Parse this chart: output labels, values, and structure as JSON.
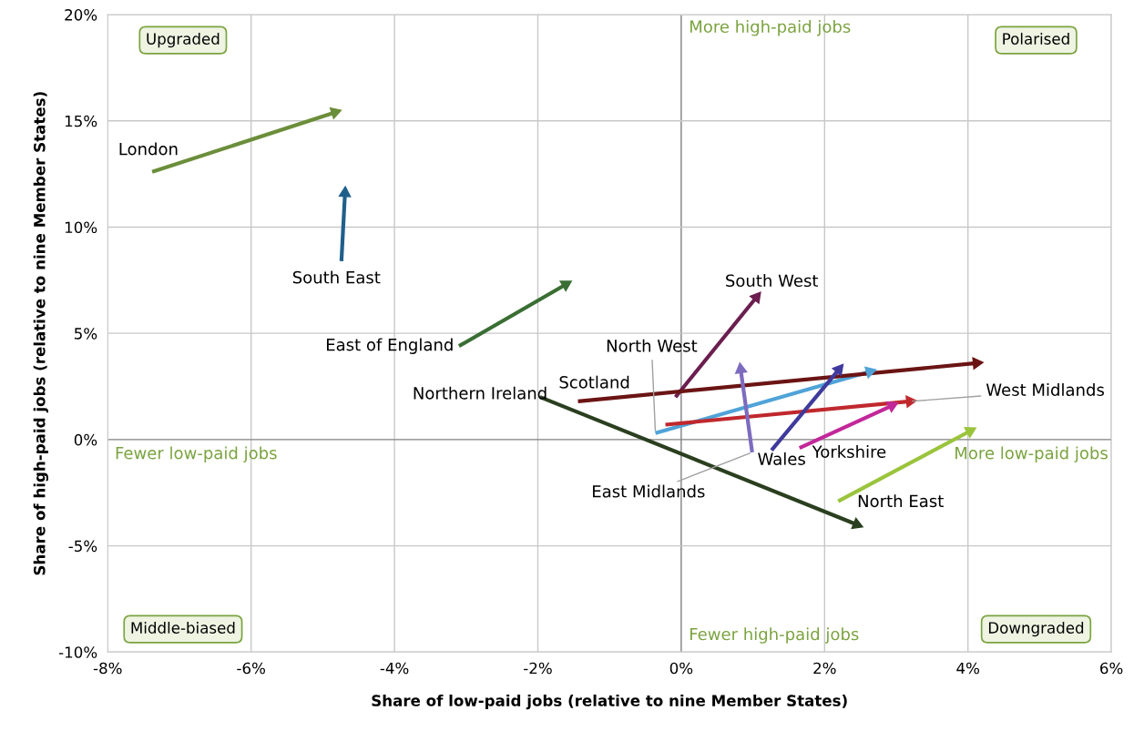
{
  "chart_data": {
    "type": "line",
    "xlabel": "Share of low-paid jobs (relative to nine Member States)",
    "ylabel": "Share of high-paid jobs (relative to nine Member States)",
    "xlim": [
      -8,
      6
    ],
    "ylim": [
      -10,
      20
    ],
    "xticks": [
      {
        "value": -8,
        "label": "-8%"
      },
      {
        "value": -6,
        "label": "-6%"
      },
      {
        "value": -4,
        "label": "-4%"
      },
      {
        "value": -2,
        "label": "-2%"
      },
      {
        "value": 0,
        "label": "0%"
      },
      {
        "value": 2,
        "label": "2%"
      },
      {
        "value": 4,
        "label": "4%"
      },
      {
        "value": 6,
        "label": "6%"
      }
    ],
    "yticks": [
      {
        "value": -10,
        "label": "-10%"
      },
      {
        "value": -5,
        "label": "-5%"
      },
      {
        "value": 0,
        "label": "0%"
      },
      {
        "value": 5,
        "label": "5%"
      },
      {
        "value": 10,
        "label": "10%"
      },
      {
        "value": 15,
        "label": "15%"
      },
      {
        "value": 20,
        "label": "20%"
      }
    ],
    "grid": true,
    "marker": "triangle",
    "line_style": "solid",
    "annotations": [
      "Upgraded",
      "Polarised",
      "Middle-biased",
      "Downgraded",
      "More high-paid jobs",
      "Fewer high-paid jobs",
      "Fewer low-paid jobs",
      "More low-paid jobs"
    ],
    "series": [
      {
        "name": "London",
        "color": "#6b8e3a",
        "x": [
          -7.38,
          -4.83
        ],
        "values": [
          12.6,
          15.4
        ]
      },
      {
        "name": "South East",
        "color": "#1f5f8b",
        "x": [
          -4.74,
          -4.69
        ],
        "values": [
          8.4,
          11.6
        ]
      },
      {
        "name": "East of England",
        "color": "#3a6e34",
        "x": [
          -3.1,
          -1.61
        ],
        "values": [
          4.4,
          7.3
        ]
      },
      {
        "name": "South West",
        "color": "#6b1e4f",
        "x": [
          -0.08,
          1.05
        ],
        "values": [
          2.0,
          6.7
        ]
      },
      {
        "name": "North West",
        "color": "#4fa3d8",
        "x": [
          -0.36,
          2.63
        ],
        "values": [
          0.3,
          3.2
        ]
      },
      {
        "name": "Scotland",
        "color": "#6b1414",
        "x": [
          -1.44,
          4.12
        ],
        "values": [
          1.8,
          3.6
        ]
      },
      {
        "name": "West Midlands",
        "color": "#c0282d",
        "x": [
          -0.22,
          3.19
        ],
        "values": [
          0.7,
          1.8
        ]
      },
      {
        "name": "Wales",
        "color": "#3f3a9c",
        "x": [
          1.26,
          2.2
        ],
        "values": [
          -0.5,
          3.3
        ]
      },
      {
        "name": "East Midlands",
        "color": "#7d6bbf",
        "x": [
          0.99,
          0.83
        ],
        "values": [
          -0.6,
          3.3
        ]
      },
      {
        "name": "Yorkshire",
        "color": "#c2289a",
        "x": [
          1.65,
          2.94
        ],
        "values": [
          -0.4,
          1.6
        ]
      },
      {
        "name": "North East",
        "color": "#9ac43c",
        "x": [
          2.19,
          4.03
        ],
        "values": [
          -2.9,
          0.4
        ]
      },
      {
        "name": "Northern Ireland",
        "color": "#2a3f1f",
        "x": [
          -1.97,
          2.45
        ],
        "values": [
          2.0,
          -4.0
        ]
      }
    ]
  }
}
